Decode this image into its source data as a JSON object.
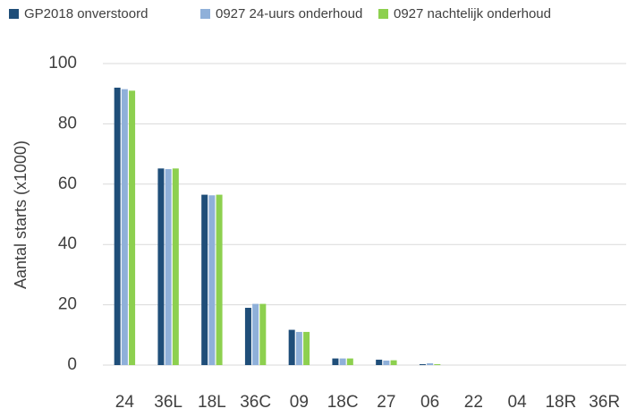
{
  "chart_data": {
    "type": "bar",
    "y_label": "Aantal starts (x1000)",
    "categories": [
      "24",
      "36L",
      "18L",
      "36C",
      "09",
      "18C",
      "27",
      "06",
      "22",
      "04",
      "18R",
      "36R"
    ],
    "series": [
      {
        "name": "GP2018 onverstoord",
        "color": "#1f4e79",
        "values": [
          92,
          65.2,
          56.5,
          19,
          11.7,
          2.2,
          1.8,
          0.3,
          0,
          0,
          0,
          0
        ]
      },
      {
        "name": "0927 24-uurs onderhoud",
        "color": "#8fb0d9",
        "values": [
          91.5,
          65,
          56.3,
          20.3,
          11,
          2.2,
          1.5,
          0.6,
          0,
          0,
          0,
          0
        ]
      },
      {
        "name": "0927 nachtelijk onderhoud",
        "color": "#8dd04f",
        "values": [
          91,
          65.2,
          56.5,
          20.3,
          11,
          2.2,
          1.6,
          0.3,
          0,
          0,
          0,
          0
        ]
      }
    ],
    "ylim": [
      0,
      100
    ],
    "yticks": [
      0,
      20,
      40,
      60,
      80,
      100
    ],
    "grid": true,
    "legend": "top"
  }
}
